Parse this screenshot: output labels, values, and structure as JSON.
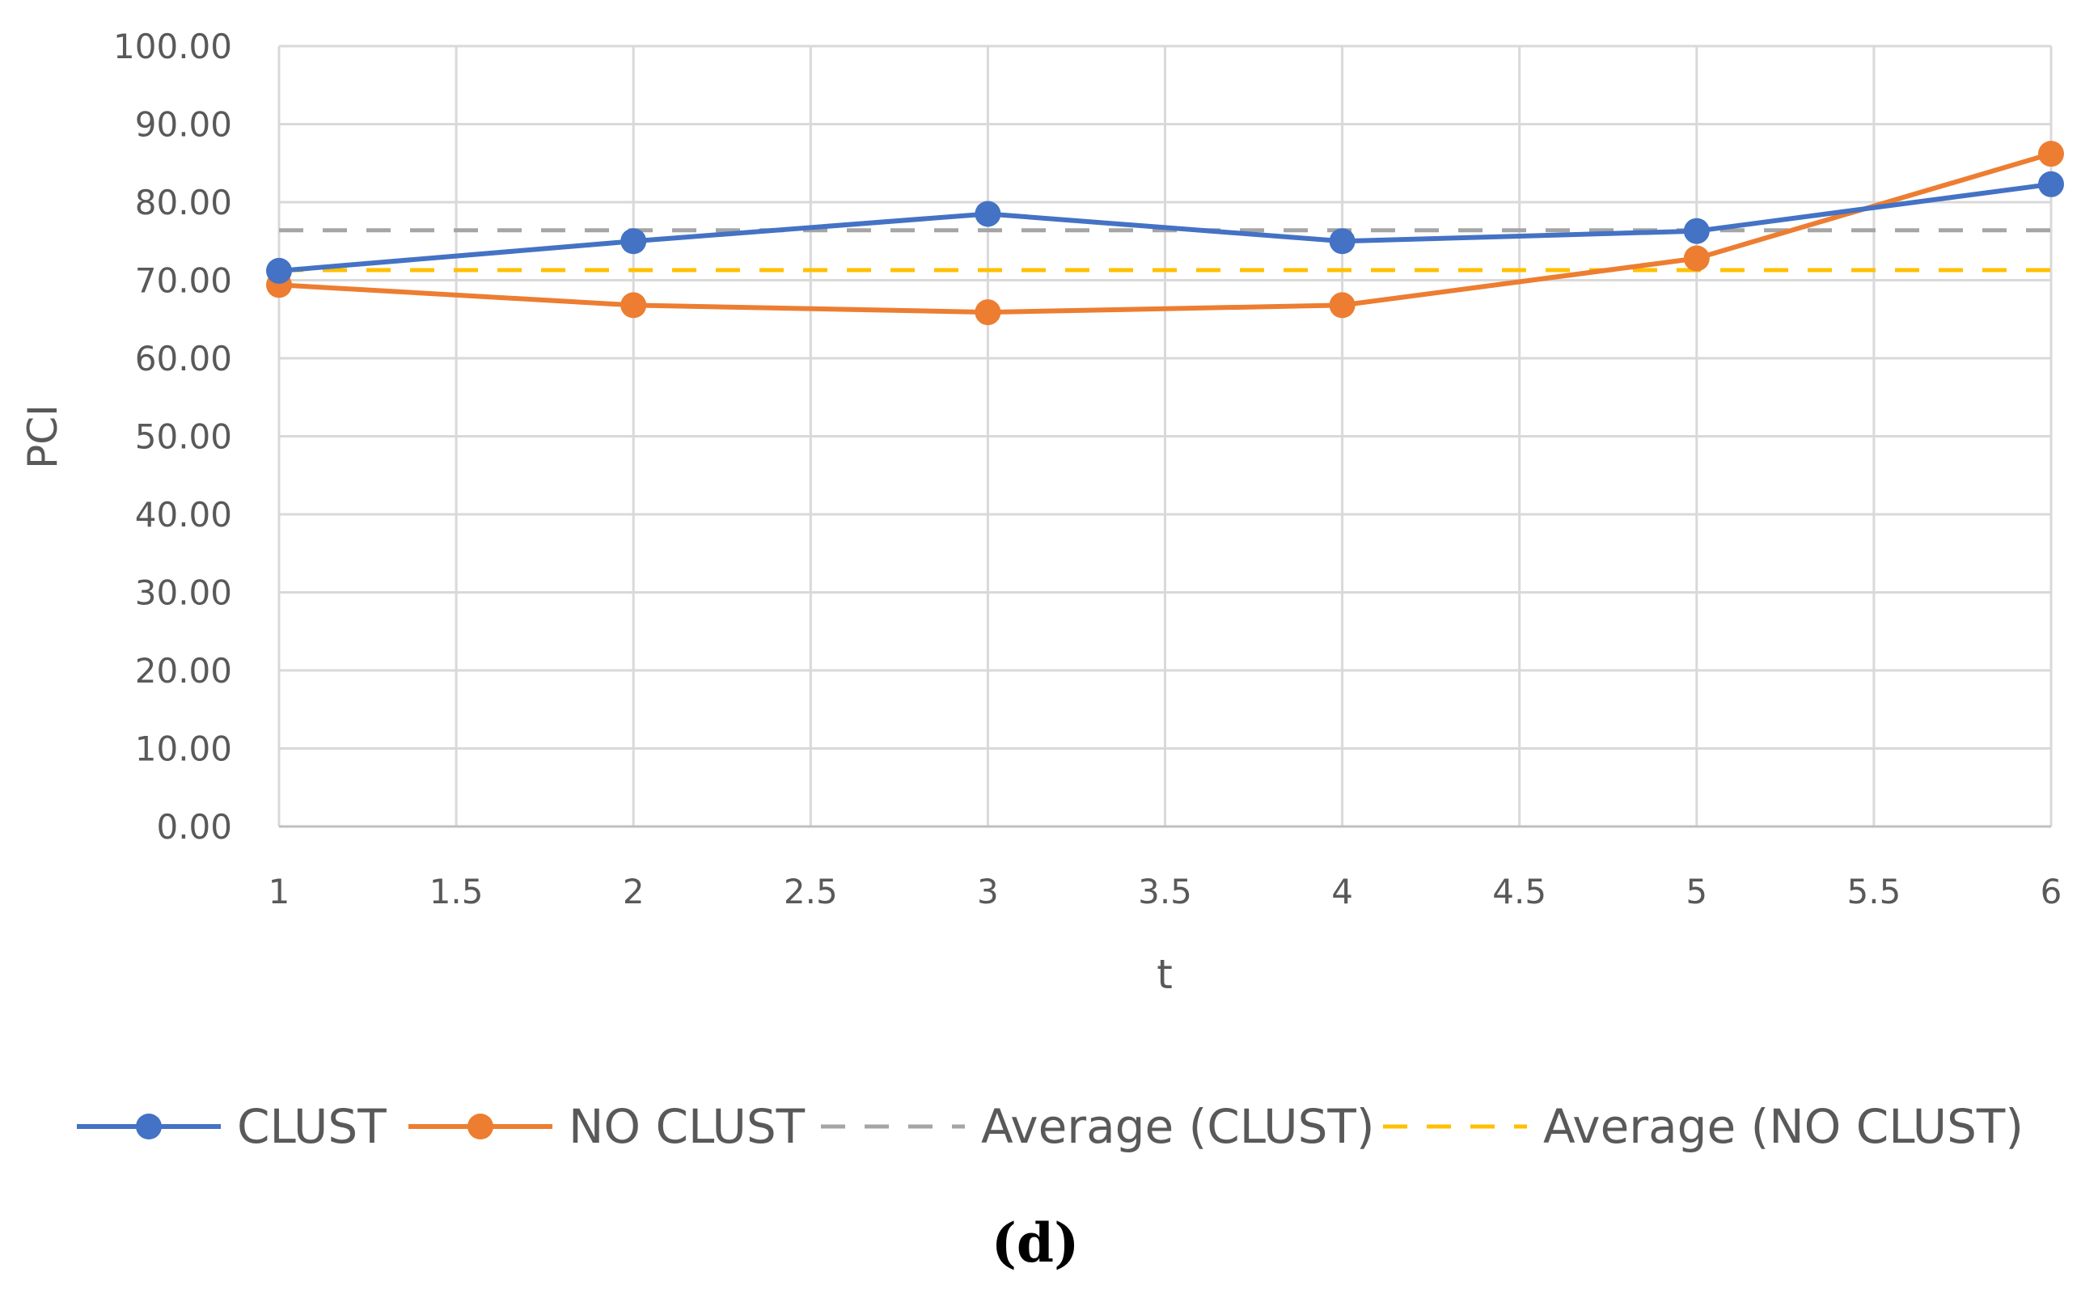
{
  "chart_data": {
    "type": "line",
    "title": "",
    "xlabel": "t",
    "ylabel": "PCI",
    "xlim": [
      1,
      6
    ],
    "ylim": [
      0,
      100
    ],
    "grid": true,
    "legend_position": "bottom",
    "x_ticks": [
      "1",
      "1.5",
      "2",
      "2.5",
      "3",
      "3.5",
      "4",
      "4.5",
      "5",
      "5.5",
      "6"
    ],
    "y_ticks": [
      "0.00",
      "10.00",
      "20.00",
      "30.00",
      "40.00",
      "50.00",
      "60.00",
      "70.00",
      "80.00",
      "90.00",
      "100.00"
    ],
    "x": [
      1,
      2,
      3,
      4,
      5,
      6
    ],
    "series": [
      {
        "name": "CLUST",
        "values": [
          71.2,
          75.0,
          78.5,
          75.0,
          76.3,
          82.3
        ],
        "color": "#4472C4",
        "style": "solid-markers"
      },
      {
        "name": "NO CLUST",
        "values": [
          69.4,
          66.8,
          65.9,
          66.8,
          72.8,
          86.2
        ],
        "color": "#ED7D31",
        "style": "solid-markers"
      },
      {
        "name": "Average (CLUST)",
        "values": [
          76.4,
          76.4,
          76.4,
          76.4,
          76.4,
          76.4
        ],
        "color": "#A5A5A5",
        "style": "dashed"
      },
      {
        "name": "Average (NO CLUST)",
        "values": [
          71.3,
          71.3,
          71.3,
          71.3,
          71.3,
          71.3
        ],
        "color": "#FFC000",
        "style": "dashed"
      }
    ]
  },
  "caption": "(d)"
}
